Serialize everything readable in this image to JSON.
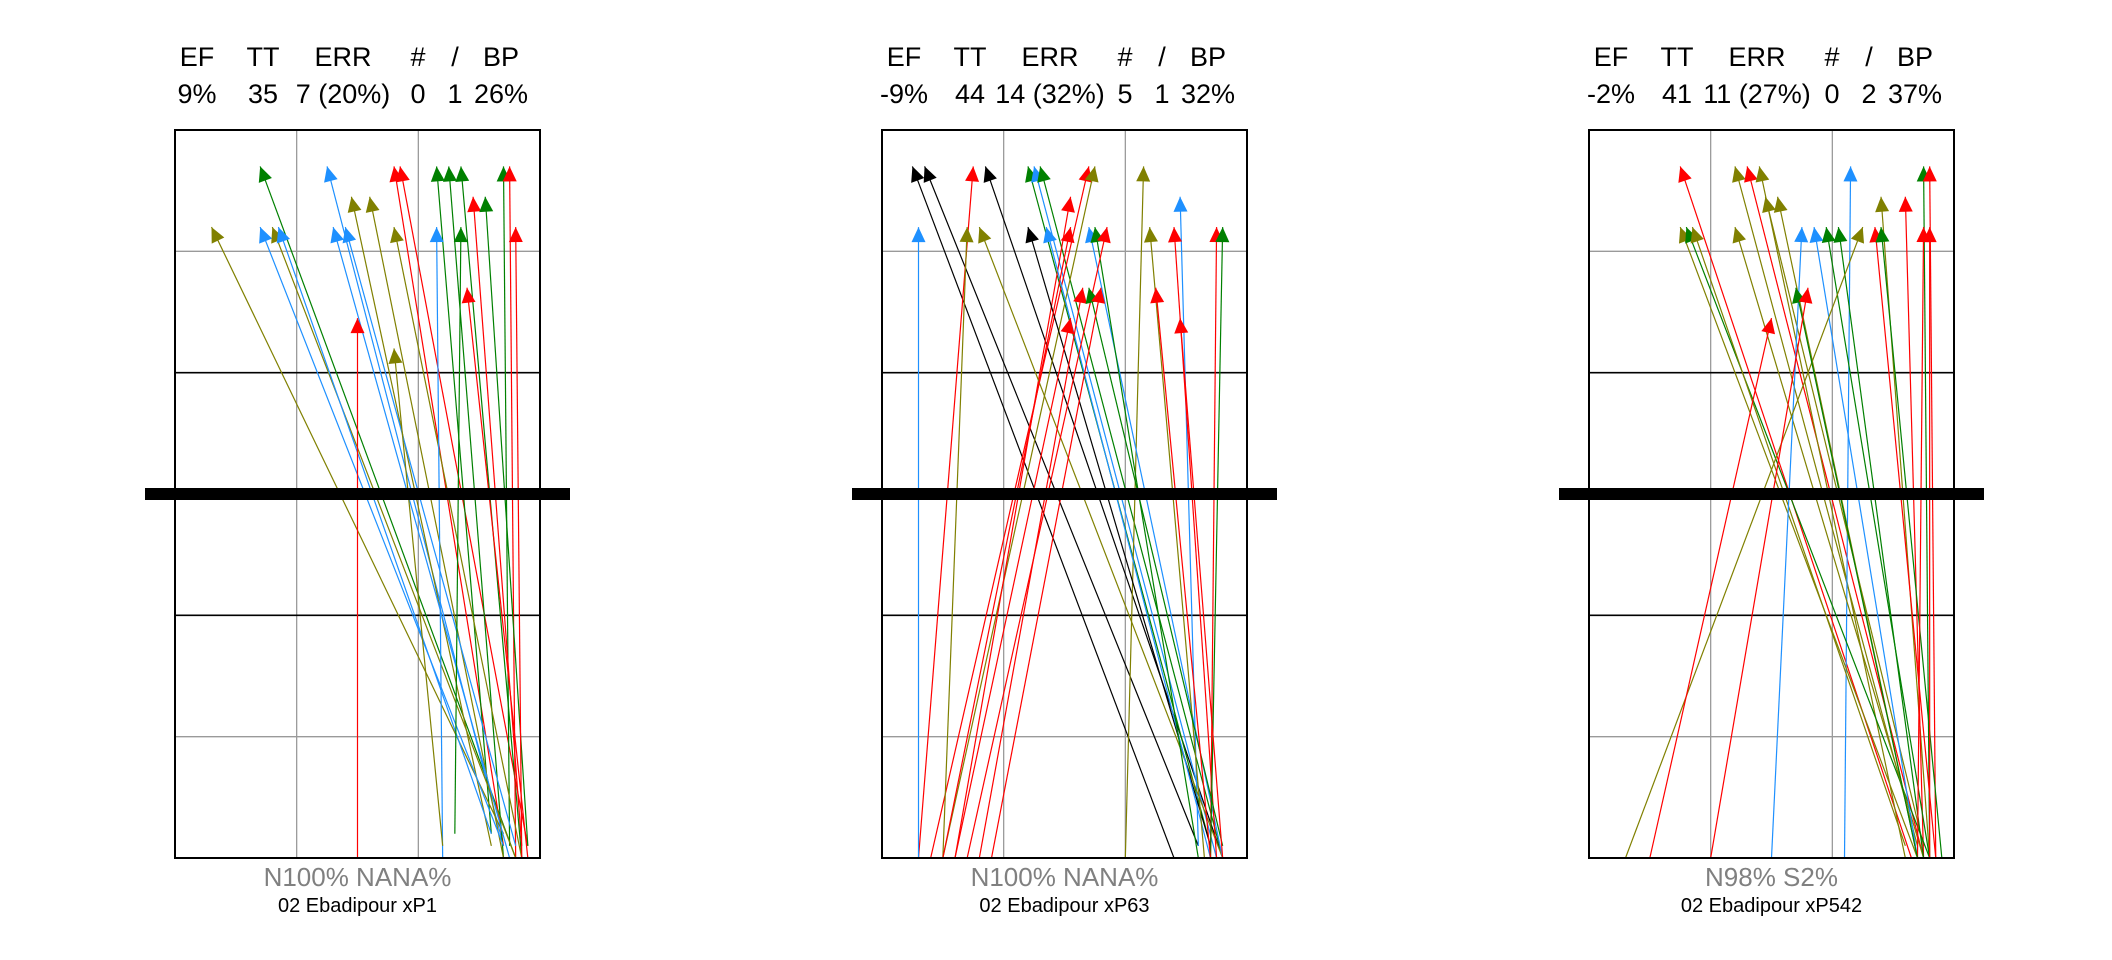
{
  "chart_data": [
    {
      "type": "arrow-plot",
      "header": {
        "labels": [
          "EF",
          "TT",
          "ERR",
          "#",
          "/",
          "BP"
        ],
        "values": [
          "9%",
          "35",
          "7 (20%)",
          "0",
          "1",
          "26%"
        ]
      },
      "footer": {
        "composition": "N100%  NANA%",
        "subject": "02 Ebadipour  xP1"
      },
      "xlim": [
        0,
        3
      ],
      "ylim": [
        0,
        6
      ],
      "threshold_y": 3,
      "grid": true,
      "colors": {
        "green": "#008000",
        "blue": "#1E90FF",
        "red": "#FF0000",
        "olive": "#808000",
        "black": "#000000"
      },
      "arrows": [
        {
          "c": "green",
          "x0": 2.8,
          "y0": 0.0,
          "x1": 0.7,
          "y1": 5.7
        },
        {
          "c": "blue",
          "x0": 2.7,
          "y0": 0.1,
          "x1": 1.25,
          "y1": 5.7
        },
        {
          "c": "red",
          "x0": 2.7,
          "y0": 0.1,
          "x1": 1.8,
          "y1": 5.7
        },
        {
          "c": "red",
          "x0": 2.9,
          "y0": 0.1,
          "x1": 1.85,
          "y1": 5.7
        },
        {
          "c": "green",
          "x0": 2.6,
          "y0": 0.2,
          "x1": 2.15,
          "y1": 5.7
        },
        {
          "c": "green",
          "x0": 2.7,
          "y0": 0.0,
          "x1": 2.25,
          "y1": 5.7
        },
        {
          "c": "green",
          "x0": 2.85,
          "y0": 0.0,
          "x1": 2.35,
          "y1": 5.7
        },
        {
          "c": "green",
          "x0": 2.75,
          "y0": 0.1,
          "x1": 2.7,
          "y1": 5.7
        },
        {
          "c": "red",
          "x0": 2.8,
          "y0": 0.0,
          "x1": 2.75,
          "y1": 5.7
        },
        {
          "c": "olive",
          "x0": 2.6,
          "y0": 0.1,
          "x1": 1.45,
          "y1": 5.45
        },
        {
          "c": "olive",
          "x0": 2.7,
          "y0": 0.0,
          "x1": 1.6,
          "y1": 5.45
        },
        {
          "c": "red",
          "x0": 2.85,
          "y0": 0.1,
          "x1": 2.45,
          "y1": 5.45
        },
        {
          "c": "green",
          "x0": 2.9,
          "y0": 0.1,
          "x1": 2.55,
          "y1": 5.45
        },
        {
          "c": "olive",
          "x0": 2.7,
          "y0": 0.2,
          "x1": 0.3,
          "y1": 5.2
        },
        {
          "c": "blue",
          "x0": 2.7,
          "y0": 0.1,
          "x1": 0.7,
          "y1": 5.2
        },
        {
          "c": "olive",
          "x0": 2.8,
          "y0": 0.0,
          "x1": 0.8,
          "y1": 5.2
        },
        {
          "c": "blue",
          "x0": 2.6,
          "y0": 0.2,
          "x1": 0.85,
          "y1": 5.2
        },
        {
          "c": "blue",
          "x0": 2.75,
          "y0": 0.0,
          "x1": 1.3,
          "y1": 5.2
        },
        {
          "c": "blue",
          "x0": 2.8,
          "y0": 0.1,
          "x1": 1.4,
          "y1": 5.2
        },
        {
          "c": "olive",
          "x0": 2.85,
          "y0": 0.0,
          "x1": 1.8,
          "y1": 5.2
        },
        {
          "c": "blue",
          "x0": 2.2,
          "y0": 0.0,
          "x1": 2.15,
          "y1": 5.2
        },
        {
          "c": "green",
          "x0": 2.3,
          "y0": 0.2,
          "x1": 2.35,
          "y1": 5.2
        },
        {
          "c": "red",
          "x0": 2.85,
          "y0": 0.0,
          "x1": 2.8,
          "y1": 5.2
        },
        {
          "c": "red",
          "x0": 2.9,
          "y0": 0.0,
          "x1": 2.4,
          "y1": 4.7
        },
        {
          "c": "red",
          "x0": 1.5,
          "y0": 0.0,
          "x1": 1.5,
          "y1": 4.45
        },
        {
          "c": "olive",
          "x0": 2.2,
          "y0": 0.1,
          "x1": 1.8,
          "y1": 4.2
        }
      ]
    },
    {
      "type": "arrow-plot",
      "header": {
        "labels": [
          "EF",
          "TT",
          "ERR",
          "#",
          "/",
          "BP"
        ],
        "values": [
          "-9%",
          "44",
          "14 (32%)",
          "5",
          "1",
          "32%"
        ]
      },
      "footer": {
        "composition": "N100%  NANA%",
        "subject": "02 Ebadipour  xP63"
      },
      "xlim": [
        0,
        3
      ],
      "ylim": [
        0,
        6
      ],
      "threshold_y": 3,
      "grid": true,
      "colors": {
        "green": "#008000",
        "blue": "#1E90FF",
        "red": "#FF0000",
        "olive": "#808000",
        "black": "#000000"
      },
      "arrows": [
        {
          "c": "black",
          "x0": 2.4,
          "y0": 0.0,
          "x1": 0.25,
          "y1": 5.7
        },
        {
          "c": "black",
          "x0": 2.6,
          "y0": 0.1,
          "x1": 0.35,
          "y1": 5.7
        },
        {
          "c": "red",
          "x0": 0.3,
          "y0": 0.0,
          "x1": 0.75,
          "y1": 5.7
        },
        {
          "c": "black",
          "x0": 2.8,
          "y0": 0.0,
          "x1": 0.85,
          "y1": 5.7
        },
        {
          "c": "green",
          "x0": 2.7,
          "y0": 0.1,
          "x1": 1.2,
          "y1": 5.7
        },
        {
          "c": "blue",
          "x0": 2.75,
          "y0": 0.0,
          "x1": 1.25,
          "y1": 5.7
        },
        {
          "c": "green",
          "x0": 2.8,
          "y0": 0.0,
          "x1": 1.3,
          "y1": 5.7
        },
        {
          "c": "red",
          "x0": 0.4,
          "y0": 0.0,
          "x1": 1.7,
          "y1": 5.7
        },
        {
          "c": "olive",
          "x0": 0.5,
          "y0": 0.0,
          "x1": 1.75,
          "y1": 5.7
        },
        {
          "c": "olive",
          "x0": 2.0,
          "y0": 0.0,
          "x1": 2.15,
          "y1": 5.7
        },
        {
          "c": "red",
          "x0": 0.6,
          "y0": 0.0,
          "x1": 1.55,
          "y1": 5.45
        },
        {
          "c": "blue",
          "x0": 2.6,
          "y0": 0.1,
          "x1": 2.45,
          "y1": 5.45
        },
        {
          "c": "blue",
          "x0": 0.3,
          "y0": 0.0,
          "x1": 0.3,
          "y1": 5.2
        },
        {
          "c": "olive",
          "x0": 0.5,
          "y0": 0.0,
          "x1": 0.7,
          "y1": 5.2
        },
        {
          "c": "olive",
          "x0": 2.8,
          "y0": 0.0,
          "x1": 0.8,
          "y1": 5.2
        },
        {
          "c": "black",
          "x0": 2.7,
          "y0": 0.1,
          "x1": 1.2,
          "y1": 5.2
        },
        {
          "c": "blue",
          "x0": 2.7,
          "y0": 0.0,
          "x1": 1.35,
          "y1": 5.2
        },
        {
          "c": "red",
          "x0": 0.5,
          "y0": 0.0,
          "x1": 1.55,
          "y1": 5.2
        },
        {
          "c": "blue",
          "x0": 2.8,
          "y0": 0.0,
          "x1": 1.7,
          "y1": 5.2
        },
        {
          "c": "green",
          "x0": 2.6,
          "y0": 0.0,
          "x1": 1.75,
          "y1": 5.2
        },
        {
          "c": "red",
          "x0": 0.7,
          "y0": 0.0,
          "x1": 1.85,
          "y1": 5.2
        },
        {
          "c": "olive",
          "x0": 2.65,
          "y0": 0.0,
          "x1": 2.2,
          "y1": 5.2
        },
        {
          "c": "red",
          "x0": 2.75,
          "y0": 0.0,
          "x1": 2.4,
          "y1": 5.2
        },
        {
          "c": "red",
          "x0": 2.7,
          "y0": 0.0,
          "x1": 2.75,
          "y1": 5.2
        },
        {
          "c": "green",
          "x0": 2.7,
          "y0": 0.0,
          "x1": 2.8,
          "y1": 5.2
        },
        {
          "c": "red",
          "x0": 0.8,
          "y0": 0.0,
          "x1": 1.65,
          "y1": 4.7
        },
        {
          "c": "green",
          "x0": 2.8,
          "y0": 0.1,
          "x1": 1.7,
          "y1": 4.7
        },
        {
          "c": "red",
          "x0": 0.9,
          "y0": 0.0,
          "x1": 1.8,
          "y1": 4.7
        },
        {
          "c": "red",
          "x0": 2.7,
          "y0": 0.0,
          "x1": 2.25,
          "y1": 4.7
        },
        {
          "c": "red",
          "x0": 0.6,
          "y0": 0.0,
          "x1": 1.55,
          "y1": 4.45
        },
        {
          "c": "red",
          "x0": 2.8,
          "y0": 0.0,
          "x1": 2.45,
          "y1": 4.45
        }
      ]
    },
    {
      "type": "arrow-plot",
      "header": {
        "labels": [
          "EF",
          "TT",
          "ERR",
          "#",
          "/",
          "BP"
        ],
        "values": [
          "-2%",
          "41",
          "11 (27%)",
          "0",
          "2",
          "37%"
        ]
      },
      "footer": {
        "composition": "N98%  S2%",
        "subject": "02 Ebadipour  xP542"
      },
      "xlim": [
        0,
        3
      ],
      "ylim": [
        0,
        6
      ],
      "threshold_y": 3,
      "grid": true,
      "colors": {
        "green": "#008000",
        "blue": "#1E90FF",
        "red": "#FF0000",
        "olive": "#808000",
        "black": "#000000"
      },
      "arrows": [
        {
          "c": "red",
          "x0": 2.65,
          "y0": 0.0,
          "x1": 0.75,
          "y1": 5.7
        },
        {
          "c": "olive",
          "x0": 2.7,
          "y0": 0.1,
          "x1": 1.2,
          "y1": 5.7
        },
        {
          "c": "red",
          "x0": 2.75,
          "y0": 0.0,
          "x1": 1.3,
          "y1": 5.7
        },
        {
          "c": "olive",
          "x0": 2.6,
          "y0": 0.0,
          "x1": 1.4,
          "y1": 5.7
        },
        {
          "c": "blue",
          "x0": 2.1,
          "y0": 0.0,
          "x1": 2.15,
          "y1": 5.7
        },
        {
          "c": "green",
          "x0": 2.8,
          "y0": 0.0,
          "x1": 2.75,
          "y1": 5.7
        },
        {
          "c": "red",
          "x0": 2.85,
          "y0": 0.0,
          "x1": 2.8,
          "y1": 5.7
        },
        {
          "c": "olive",
          "x0": 2.75,
          "y0": 0.1,
          "x1": 1.45,
          "y1": 5.45
        },
        {
          "c": "olive",
          "x0": 2.7,
          "y0": 0.0,
          "x1": 1.55,
          "y1": 5.45
        },
        {
          "c": "olive",
          "x0": 2.8,
          "y0": 0.0,
          "x1": 2.4,
          "y1": 5.45
        },
        {
          "c": "red",
          "x0": 2.75,
          "y0": 0.0,
          "x1": 2.6,
          "y1": 5.45
        },
        {
          "c": "olive",
          "x0": 2.7,
          "y0": 0.0,
          "x1": 0.75,
          "y1": 5.2
        },
        {
          "c": "green",
          "x0": 2.8,
          "y0": 0.0,
          "x1": 0.8,
          "y1": 5.2
        },
        {
          "c": "olive",
          "x0": 2.6,
          "y0": 0.1,
          "x1": 0.85,
          "y1": 5.2
        },
        {
          "c": "olive",
          "x0": 2.75,
          "y0": 0.0,
          "x1": 1.2,
          "y1": 5.2
        },
        {
          "c": "blue",
          "x0": 1.5,
          "y0": 0.0,
          "x1": 1.75,
          "y1": 5.2
        },
        {
          "c": "blue",
          "x0": 2.7,
          "y0": 0.0,
          "x1": 1.85,
          "y1": 5.2
        },
        {
          "c": "green",
          "x0": 2.8,
          "y0": 0.0,
          "x1": 1.95,
          "y1": 5.2
        },
        {
          "c": "green",
          "x0": 2.75,
          "y0": 0.0,
          "x1": 2.05,
          "y1": 5.2
        },
        {
          "c": "olive",
          "x0": 0.3,
          "y0": 0.0,
          "x1": 2.25,
          "y1": 5.2
        },
        {
          "c": "red",
          "x0": 2.85,
          "y0": 0.0,
          "x1": 2.35,
          "y1": 5.2
        },
        {
          "c": "green",
          "x0": 2.9,
          "y0": 0.0,
          "x1": 2.4,
          "y1": 5.2
        },
        {
          "c": "red",
          "x0": 2.7,
          "y0": 0.0,
          "x1": 2.75,
          "y1": 5.2
        },
        {
          "c": "red",
          "x0": 2.8,
          "y0": 0.0,
          "x1": 2.8,
          "y1": 5.2
        },
        {
          "c": "green",
          "x0": 2.7,
          "y0": 0.0,
          "x1": 1.7,
          "y1": 4.7
        },
        {
          "c": "red",
          "x0": 1.0,
          "y0": 0.0,
          "x1": 1.8,
          "y1": 4.7
        },
        {
          "c": "red",
          "x0": 0.5,
          "y0": 0.0,
          "x1": 1.5,
          "y1": 4.45
        }
      ]
    }
  ]
}
